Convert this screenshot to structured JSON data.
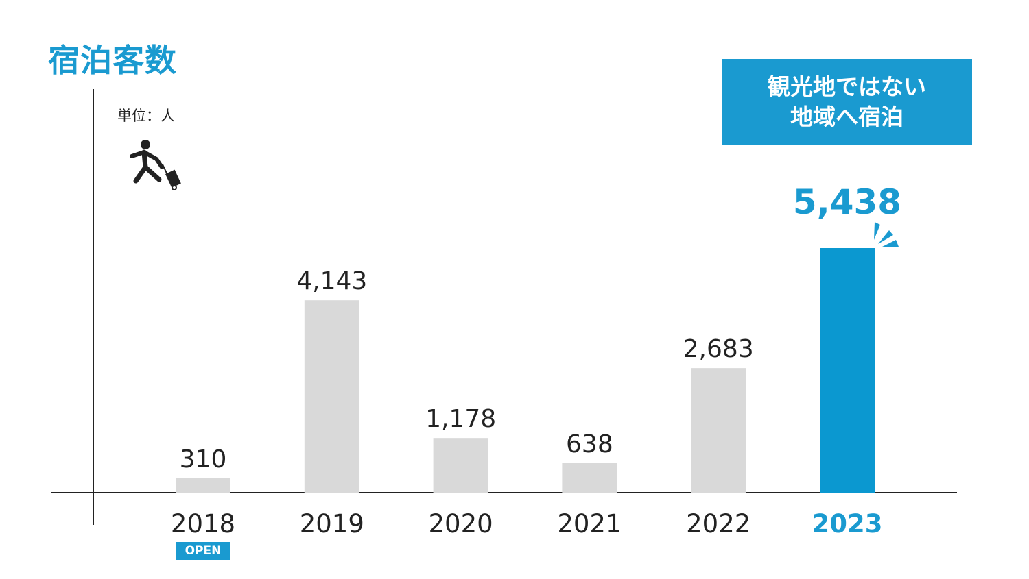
{
  "chart_data": {
    "type": "bar",
    "title": "宿泊客数",
    "unit_label": "単位：人",
    "categories": [
      "2018",
      "2019",
      "2020",
      "2021",
      "2022",
      "2023"
    ],
    "values": [
      310,
      4143,
      1178,
      638,
      2683,
      5438
    ],
    "data_labels": [
      "310",
      "4,143",
      "1,178",
      "638",
      "2,683",
      "5,438"
    ],
    "highlight_index": 5,
    "ylim": [
      0,
      5400
    ],
    "grid": false,
    "annotations": {
      "callout": [
        "観光地ではない",
        "地域へ宿泊"
      ],
      "open_badge": "OPEN"
    },
    "colors": {
      "normal": "#d9d9d9",
      "highlight": "#0b98d0",
      "accent": "#1a9ad0",
      "text": "#222222"
    }
  }
}
